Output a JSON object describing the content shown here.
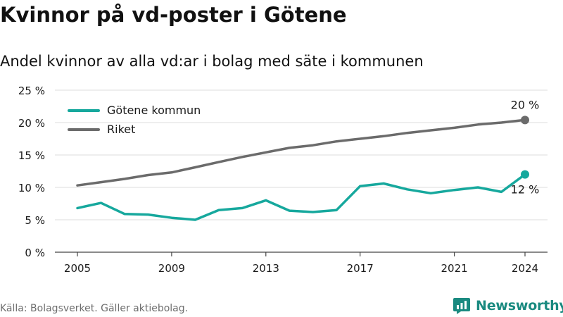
{
  "title": "Kvinnor på vd-poster i Götene",
  "subtitle": "Andel kvinnor av alla vd:ar i bolag med säte i kommunen",
  "source": "Källa: Bolagsverket. Gäller aktiebolag.",
  "brand": {
    "name": "Newsworthy",
    "logo_icon": "newsworthy-logo-icon",
    "color": "#1a8a80"
  },
  "chart_data": {
    "type": "line",
    "x": [
      2005,
      2006,
      2007,
      2008,
      2009,
      2010,
      2011,
      2012,
      2013,
      2014,
      2015,
      2016,
      2017,
      2018,
      2019,
      2020,
      2021,
      2022,
      2023,
      2024
    ],
    "series": [
      {
        "name": "Götene kommun",
        "color": "#16a89d",
        "values": [
          6.8,
          7.6,
          5.9,
          5.8,
          5.3,
          5.0,
          6.5,
          6.8,
          8.0,
          6.4,
          6.2,
          6.5,
          10.2,
          10.6,
          9.7,
          9.1,
          9.6,
          10.0,
          9.3,
          12.0
        ],
        "end_label": "12 %"
      },
      {
        "name": "Riket",
        "color": "#6b6b6b",
        "values": [
          10.3,
          10.8,
          11.3,
          11.9,
          12.3,
          13.1,
          13.9,
          14.7,
          15.4,
          16.1,
          16.5,
          17.1,
          17.5,
          17.9,
          18.4,
          18.8,
          19.2,
          19.7,
          20.0,
          20.4
        ],
        "end_label": "20 %"
      }
    ],
    "y_ticks": [
      0,
      5,
      10,
      15,
      20,
      25
    ],
    "y_tick_labels": [
      "0 %",
      "5 %",
      "10 %",
      "15 %",
      "20 %",
      "25 %"
    ],
    "x_ticks": [
      2005,
      2009,
      2013,
      2017,
      2021,
      2024
    ],
    "x_tick_labels": [
      "2005",
      "2009",
      "2013",
      "2017",
      "2021",
      "2024"
    ],
    "ylim": [
      0,
      25
    ],
    "xlim": [
      2005,
      2024
    ],
    "grid": true,
    "legend_position": "top-left"
  }
}
